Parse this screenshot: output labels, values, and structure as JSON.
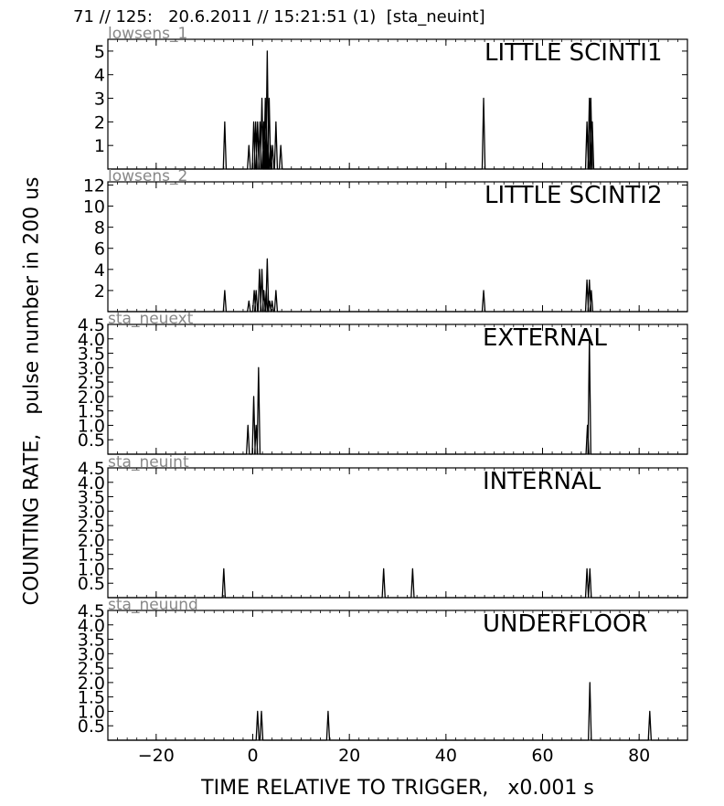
{
  "header": {
    "title": "71 // 125:   20.6.2011 // 15:21:51 (1)  [sta_neuint]"
  },
  "axes": {
    "ylabel": "COUNTING RATE,   pulse number in 200 us",
    "xlabel": "TIME RELATIVE TO TRIGGER,   x0.001 s",
    "xlim": [
      -30,
      90
    ],
    "xticks": [
      -20,
      0,
      20,
      40,
      60,
      80
    ],
    "xtick_labels": [
      "−20",
      "0",
      "20",
      "40",
      "60",
      "80"
    ]
  },
  "chart_data": [
    {
      "type": "line",
      "panel_label": "lowsens_1",
      "title": "LITTLE SCINTI1",
      "ylim": [
        0,
        5.5
      ],
      "yticks": [
        1,
        2,
        3,
        4,
        5
      ],
      "ytick_labels": [
        "1",
        "2",
        "3",
        "4",
        "5"
      ],
      "peaks": [
        [
          -5.8,
          2
        ],
        [
          -0.8,
          1
        ],
        [
          0.2,
          2
        ],
        [
          0.6,
          2
        ],
        [
          1.0,
          2
        ],
        [
          1.5,
          2
        ],
        [
          1.9,
          3
        ],
        [
          2.3,
          2
        ],
        [
          2.6,
          3
        ],
        [
          2.8,
          2
        ],
        [
          3.0,
          5
        ],
        [
          3.4,
          3
        ],
        [
          3.7,
          1
        ],
        [
          4.1,
          1
        ],
        [
          4.8,
          2
        ],
        [
          5.8,
          1
        ],
        [
          47.8,
          3
        ],
        [
          69.2,
          2
        ],
        [
          69.7,
          3
        ],
        [
          70.0,
          3
        ],
        [
          70.3,
          2
        ]
      ]
    },
    {
      "type": "line",
      "panel_label": "lowsens_2",
      "title": "LITTLE SCINTI2",
      "ylim": [
        0,
        12.3
      ],
      "yticks": [
        2,
        4,
        6,
        8,
        10,
        12
      ],
      "ytick_labels": [
        "2",
        "4",
        "6",
        "8",
        "10",
        "12"
      ],
      "peaks": [
        [
          -5.8,
          2
        ],
        [
          -0.8,
          1
        ],
        [
          0.3,
          2
        ],
        [
          0.7,
          2
        ],
        [
          1.4,
          4
        ],
        [
          1.9,
          4
        ],
        [
          2.3,
          2
        ],
        [
          2.8,
          2
        ],
        [
          3.0,
          5
        ],
        [
          3.5,
          1
        ],
        [
          4.0,
          1
        ],
        [
          4.8,
          2
        ],
        [
          47.8,
          2
        ],
        [
          69.2,
          3
        ],
        [
          69.7,
          3
        ],
        [
          70.1,
          2
        ]
      ]
    },
    {
      "type": "line",
      "panel_label": "sta_neuext",
      "title": "EXTERNAL",
      "ylim": [
        0,
        4.5
      ],
      "yticks": [
        0.5,
        1.0,
        1.5,
        2.0,
        2.5,
        3.0,
        3.5,
        4.0,
        4.5
      ],
      "ytick_labels": [
        "0.5",
        "1.0",
        "1.5",
        "2.0",
        "2.5",
        "3.0",
        "3.5",
        "4.0",
        "4.5"
      ],
      "peaks": [
        [
          -1.0,
          1
        ],
        [
          0.2,
          2
        ],
        [
          0.7,
          1
        ],
        [
          1.2,
          3
        ],
        [
          69.3,
          1
        ],
        [
          69.7,
          4
        ]
      ]
    },
    {
      "type": "line",
      "panel_label": "sta_neuint",
      "title": "INTERNAL",
      "ylim": [
        0,
        4.5
      ],
      "yticks": [
        0.5,
        1.0,
        1.5,
        2.0,
        2.5,
        3.0,
        3.5,
        4.0,
        4.5
      ],
      "ytick_labels": [
        "0.5",
        "1.0",
        "1.5",
        "2.0",
        "2.5",
        "3.0",
        "3.5",
        "4.0",
        "4.5"
      ],
      "peaks": [
        [
          -6.0,
          1
        ],
        [
          27.1,
          1
        ],
        [
          33.1,
          1
        ],
        [
          69.2,
          1
        ],
        [
          69.8,
          1
        ]
      ]
    },
    {
      "type": "line",
      "panel_label": "sta_neuund",
      "title": "UNDERFLOOR",
      "ylim": [
        0,
        4.5
      ],
      "yticks": [
        0.5,
        1.0,
        1.5,
        2.0,
        2.5,
        3.0,
        3.5,
        4.0,
        4.5
      ],
      "ytick_labels": [
        "0.5",
        "1.0",
        "1.5",
        "2.0",
        "2.5",
        "3.0",
        "3.5",
        "4.0",
        "4.5"
      ],
      "peaks": [
        [
          1.0,
          1
        ],
        [
          1.8,
          1
        ],
        [
          15.6,
          1
        ],
        [
          69.8,
          2
        ],
        [
          82.2,
          1
        ]
      ]
    }
  ]
}
